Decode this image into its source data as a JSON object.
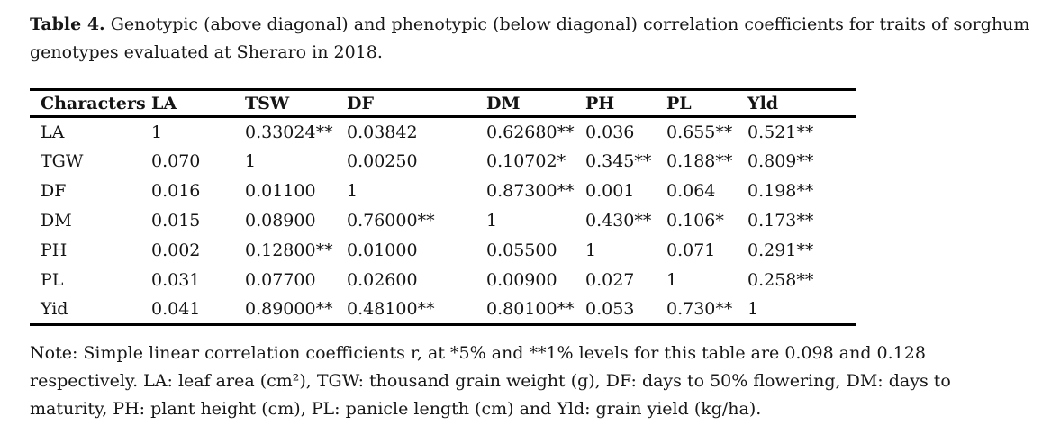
{
  "title": {
    "label": "Table 4.",
    "text": " Genotypic (above diagonal) and phenotypic (below diagonal) correlation coefficients for traits of sorghum genotypes evaluated at Sheraro in 2018."
  },
  "table": {
    "headers": [
      "Characters",
      "LA",
      "TSW",
      "DF",
      "DM",
      "PH",
      "PL",
      "Yld"
    ],
    "rows": [
      {
        "character": "LA",
        "values": [
          "1",
          "0.33024**",
          "0.03842",
          "0.62680**",
          "0.036",
          "0.655**",
          "0.521**"
        ]
      },
      {
        "character": "TGW",
        "values": [
          "0.070",
          "1",
          "0.00250",
          "0.10702*",
          "0.345**",
          "0.188**",
          "0.809**"
        ]
      },
      {
        "character": "DF",
        "values": [
          "0.016",
          "0.01100",
          "1",
          "0.87300**",
          "0.001",
          "0.064",
          "0.198**"
        ]
      },
      {
        "character": "DM",
        "values": [
          "0.015",
          "0.08900",
          "0.76000**",
          "1",
          "0.430**",
          "0.106*",
          "0.173**"
        ]
      },
      {
        "character": "PH",
        "values": [
          "0.002",
          "0.12800**",
          "0.01000",
          "0.05500",
          "1",
          "0.071",
          "0.291**"
        ]
      },
      {
        "character": "PL",
        "values": [
          "0.031",
          "0.07700",
          "0.02600",
          "0.00900",
          "0.027",
          "1",
          "0.258**"
        ]
      },
      {
        "character": "Yid",
        "values": [
          "0.041",
          "0.89000**",
          "0.48100**",
          "0.80100**",
          "0.053",
          "0.730**",
          "1"
        ]
      }
    ]
  },
  "note": "Note: Simple linear correlation coefficients r, at *5% and **1% levels for this table are 0.098 and 0.128 respectively. LA: leaf area (cm²), TGW: thousand grain weight (g), DF: days to 50% flowering, DM: days to maturity, PH: plant height (cm), PL: panicle length (cm) and Yld: grain yield (kg/ha).",
  "colors": {
    "background": "#ffffff",
    "text": "#161616",
    "rule": "#000000"
  },
  "chart_data": {
    "type": "table",
    "title": "Table 4. Genotypic (above diagonal) and phenotypic (below diagonal) correlation coefficients for traits of sorghum genotypes evaluated at Sheraro in 2018.",
    "columns": [
      "Characters",
      "LA",
      "TSW",
      "DF",
      "DM",
      "PH",
      "PL",
      "Yld"
    ],
    "rows": [
      [
        "LA",
        "1",
        "0.33024**",
        "0.03842",
        "0.62680**",
        "0.036",
        "0.655**",
        "0.521**"
      ],
      [
        "TGW",
        "0.070",
        "1",
        "0.00250",
        "0.10702*",
        "0.345**",
        "0.188**",
        "0.809**"
      ],
      [
        "DF",
        "0.016",
        "0.01100",
        "1",
        "0.87300**",
        "0.001",
        "0.064",
        "0.198**"
      ],
      [
        "DM",
        "0.015",
        "0.08900",
        "0.76000**",
        "1",
        "0.430**",
        "0.106*",
        "0.173**"
      ],
      [
        "PH",
        "0.002",
        "0.12800**",
        "0.01000",
        "0.05500",
        "1",
        "0.071",
        "0.291**"
      ],
      [
        "PL",
        "0.031",
        "0.07700",
        "0.02600",
        "0.00900",
        "0.027",
        "1",
        "0.258**"
      ],
      [
        "Yid",
        "0.041",
        "0.89000**",
        "0.48100**",
        "0.80100**",
        "0.053",
        "0.730**",
        "1"
      ]
    ],
    "footnote": "Note: Simple linear correlation coefficients r, at *5% and **1% levels for this table are 0.098 and 0.128 respectively. LA: leaf area (cm²), TGW: thousand grain weight (g), DF: days to 50% flowering, DM: days to maturity, PH: plant height (cm), PL: panicle length (cm) and Yld: grain yield (kg/ha)."
  }
}
